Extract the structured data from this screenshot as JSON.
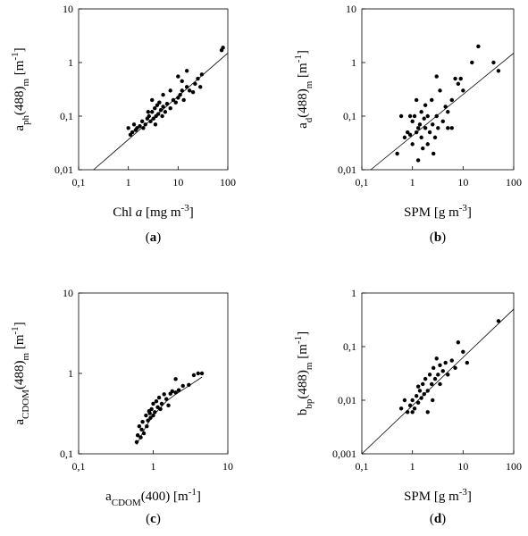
{
  "chart_data": [
    {
      "type": "scatter",
      "log_x": true,
      "log_y": true,
      "color": "#000000",
      "xlim": [
        0.1,
        100
      ],
      "ylim": [
        0.01,
        10
      ],
      "xticks": [
        {
          "value": 0.1,
          "label": "0,1"
        },
        1,
        10,
        100
      ],
      "yticks": [
        {
          "value": 0.01,
          "label": "0,01"
        },
        {
          "value": 0.1,
          "label": "0,1"
        },
        1,
        10
      ],
      "xlabel": [
        {
          "text": "Chl "
        },
        {
          "text": "a",
          "style": "italic"
        },
        {
          "text": " [mg m"
        },
        {
          "text": "-3",
          "shift": "sup"
        },
        {
          "text": "]"
        }
      ],
      "ylabel": [
        {
          "text": "a"
        },
        {
          "text": "ph",
          "shift": "sub"
        },
        {
          "text": "(488)"
        },
        {
          "text": "m",
          "shift": "sub"
        },
        {
          "text": " [m"
        },
        {
          "text": "-1",
          "shift": "sup"
        },
        {
          "text": "]"
        }
      ],
      "caption": [
        {
          "text": "("
        },
        {
          "text": "a",
          "style": "bold"
        },
        {
          "text": ")"
        }
      ],
      "x": [
        1.0,
        1.1,
        1.2,
        1.3,
        1.4,
        1.5,
        1.7,
        1.9,
        2.0,
        2.2,
        2.4,
        2.6,
        2.8,
        3.0,
        3.2,
        3.4,
        3.6,
        3.8,
        4.0,
        4.2,
        4.5,
        4.8,
        5.0,
        5.5,
        6,
        7,
        8,
        9,
        10,
        11,
        12,
        13,
        15,
        17,
        20,
        22,
        25,
        28,
        30,
        10,
        12,
        15,
        7,
        5,
        3,
        75,
        80,
        2.5,
        3.5
      ],
      "y": [
        0.06,
        0.045,
        0.05,
        0.07,
        0.055,
        0.06,
        0.065,
        0.08,
        0.06,
        0.07,
        0.09,
        0.1,
        0.08,
        0.12,
        0.09,
        0.14,
        0.1,
        0.16,
        0.11,
        0.18,
        0.13,
        0.1,
        0.15,
        0.12,
        0.17,
        0.14,
        0.2,
        0.18,
        0.22,
        0.25,
        0.3,
        0.2,
        0.35,
        0.3,
        0.28,
        0.4,
        0.5,
        0.35,
        0.6,
        0.55,
        0.45,
        0.7,
        0.3,
        0.25,
        0.2,
        1.7,
        1.9,
        0.12,
        0.07
      ],
      "fit_line": {
        "x": [
          0.2,
          100
        ],
        "y": [
          0.01,
          1.5
        ]
      }
    },
    {
      "type": "scatter",
      "log_x": true,
      "log_y": true,
      "color": "#000000",
      "xlim": [
        0.1,
        100
      ],
      "ylim": [
        0.01,
        10
      ],
      "xticks": [
        {
          "value": 0.1,
          "label": "0,1"
        },
        1,
        10,
        100
      ],
      "yticks": [
        {
          "value": 0.01,
          "label": "0,01"
        },
        {
          "value": 0.1,
          "label": "0,1"
        },
        1,
        10
      ],
      "xlabel": [
        {
          "text": "SPM [g m"
        },
        {
          "text": "-3",
          "shift": "sup"
        },
        {
          "text": "]"
        }
      ],
      "ylabel": [
        {
          "text": "a"
        },
        {
          "text": "d",
          "shift": "sub"
        },
        {
          "text": "(488)"
        },
        {
          "text": "m",
          "shift": "sub"
        },
        {
          "text": " [m"
        },
        {
          "text": "-1",
          "shift": "sup"
        },
        {
          "text": "]"
        }
      ],
      "caption": [
        {
          "text": "("
        },
        {
          "text": "b",
          "style": "bold"
        },
        {
          "text": ")"
        }
      ],
      "x": [
        0.5,
        0.6,
        0.7,
        0.8,
        0.9,
        1.0,
        1.0,
        1.1,
        1.2,
        1.2,
        1.3,
        1.4,
        1.5,
        1.5,
        1.6,
        1.7,
        1.8,
        2.0,
        2.0,
        2.2,
        2.4,
        2.5,
        2.8,
        3.0,
        3.0,
        3.2,
        3.5,
        4,
        4.5,
        5,
        5,
        6,
        7,
        8,
        9,
        10,
        15,
        20,
        40,
        50,
        1.3,
        0.9,
        2.6,
        1.8,
        6
      ],
      "y": [
        0.02,
        0.1,
        0.04,
        0.05,
        0.045,
        0.03,
        0.08,
        0.1,
        0.05,
        0.2,
        0.015,
        0.07,
        0.04,
        0.12,
        0.025,
        0.09,
        0.06,
        0.03,
        0.1,
        0.05,
        0.2,
        0.07,
        0.04,
        0.55,
        0.1,
        0.06,
        0.3,
        0.08,
        0.15,
        0.06,
        0.12,
        0.2,
        0.5,
        0.4,
        0.5,
        0.3,
        1.0,
        2.0,
        1.0,
        0.7,
        0.06,
        0.1,
        0.02,
        0.16,
        0.06
      ],
      "fit_line": {
        "x": [
          0.15,
          100
        ],
        "y": [
          0.01,
          1.5
        ]
      }
    },
    {
      "type": "scatter",
      "log_x": true,
      "log_y": true,
      "color": "#000000",
      "xlim": [
        0.1,
        10
      ],
      "ylim": [
        0.1,
        10
      ],
      "xticks": [
        {
          "value": 0.1,
          "label": "0,1"
        },
        1,
        10
      ],
      "yticks": [
        {
          "value": 0.1,
          "label": "0,1"
        },
        1,
        10
      ],
      "xlabel": [
        {
          "text": "a"
        },
        {
          "text": "CDOM",
          "shift": "sub"
        },
        {
          "text": "(400) [m"
        },
        {
          "text": "-1",
          "shift": "sup"
        },
        {
          "text": "]"
        }
      ],
      "ylabel": [
        {
          "text": "a"
        },
        {
          "text": "CDOM",
          "shift": "sub"
        },
        {
          "text": "(488)"
        },
        {
          "text": "m",
          "shift": "sub"
        },
        {
          "text": " [m"
        },
        {
          "text": "-1",
          "shift": "sup"
        },
        {
          "text": "]"
        }
      ],
      "caption": [
        {
          "text": "("
        },
        {
          "text": "c",
          "style": "bold"
        },
        {
          "text": ")"
        }
      ],
      "x": [
        0.6,
        0.62,
        0.65,
        0.7,
        0.72,
        0.75,
        0.8,
        0.82,
        0.85,
        0.9,
        0.92,
        0.95,
        1.0,
        1.0,
        1.05,
        1.1,
        1.15,
        1.2,
        1.3,
        1.4,
        1.5,
        1.6,
        1.7,
        1.8,
        2.0,
        2.0,
        2.2,
        2.5,
        3.0,
        3.5,
        4.0,
        4.5,
        0.68,
        0.88,
        1.25
      ],
      "y": [
        0.14,
        0.17,
        0.22,
        0.2,
        0.25,
        0.18,
        0.3,
        0.22,
        0.26,
        0.32,
        0.28,
        0.36,
        0.3,
        0.42,
        0.33,
        0.45,
        0.38,
        0.5,
        0.42,
        0.55,
        0.48,
        0.4,
        0.56,
        0.6,
        0.58,
        0.85,
        0.62,
        0.7,
        0.72,
        0.95,
        1.0,
        1.0,
        0.16,
        0.34,
        0.36
      ],
      "fit_line": {
        "x": [
          0.6,
          0.8,
          1.0,
          1.5,
          2.0,
          3.0,
          4.5
        ],
        "y": [
          0.13,
          0.22,
          0.3,
          0.45,
          0.55,
          0.7,
          0.9
        ]
      }
    },
    {
      "type": "scatter",
      "log_x": true,
      "log_y": true,
      "color": "#000000",
      "xlim": [
        0.1,
        100
      ],
      "ylim": [
        0.001,
        1
      ],
      "xticks": [
        {
          "value": 0.1,
          "label": "0,1"
        },
        1,
        10,
        100
      ],
      "yticks": [
        {
          "value": 0.001,
          "label": "0,001"
        },
        {
          "value": 0.01,
          "label": "0,01"
        },
        {
          "value": 0.1,
          "label": "0,1"
        },
        1
      ],
      "xlabel": [
        {
          "text": "SPM [g m"
        },
        {
          "text": "-3",
          "shift": "sup"
        },
        {
          "text": "]"
        }
      ],
      "ylabel": [
        {
          "text": "b"
        },
        {
          "text": "bp",
          "shift": "sub"
        },
        {
          "text": "(488)"
        },
        {
          "text": "m",
          "shift": "sub"
        },
        {
          "text": " [m"
        },
        {
          "text": "-1",
          "shift": "sup"
        },
        {
          "text": "]"
        }
      ],
      "caption": [
        {
          "text": "("
        },
        {
          "text": "d",
          "style": "bold"
        },
        {
          "text": ")"
        }
      ],
      "x": [
        0.6,
        0.7,
        0.8,
        0.9,
        1.0,
        1.1,
        1.2,
        1.3,
        1.4,
        1.5,
        1.6,
        1.7,
        1.8,
        2.0,
        2.2,
        2.4,
        2.6,
        2.8,
        3.0,
        3.2,
        3.5,
        4,
        4.5,
        5,
        6,
        7,
        8,
        10,
        12,
        50,
        1.0,
        2.5,
        3.5,
        1.3,
        2.0
      ],
      "y": [
        0.007,
        0.01,
        0.006,
        0.008,
        0.01,
        0.007,
        0.012,
        0.009,
        0.015,
        0.011,
        0.02,
        0.013,
        0.025,
        0.015,
        0.03,
        0.02,
        0.04,
        0.025,
        0.06,
        0.03,
        0.045,
        0.035,
        0.05,
        0.03,
        0.055,
        0.04,
        0.12,
        0.08,
        0.05,
        0.3,
        0.006,
        0.01,
        0.02,
        0.018,
        0.006
      ],
      "fit_line": {
        "x": [
          0.1,
          100
        ],
        "y": [
          0.001,
          0.5
        ]
      }
    }
  ]
}
